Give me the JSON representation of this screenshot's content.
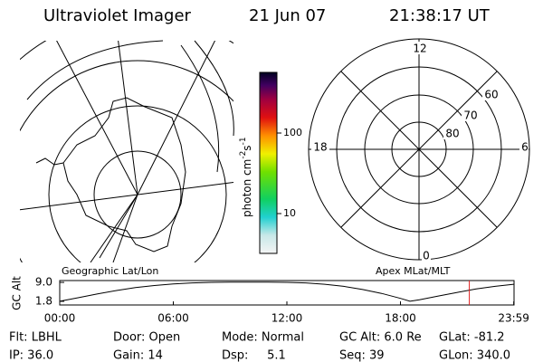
{
  "header": {
    "instrument": "Ultraviolet Imager",
    "date": "21 Jun 07",
    "time": "21:38:17 UT"
  },
  "colorbar": {
    "label": "photon cm",
    "exp1": "-2",
    "unit2": "s",
    "exp2": "-1",
    "ticks": [
      "100",
      "10"
    ]
  },
  "polar": {
    "mlt_labels": [
      "12",
      "18",
      "6",
      "0"
    ],
    "mlat_labels": [
      "60",
      "70",
      "80"
    ]
  },
  "map_label": "Geographic Lat/Lon",
  "polar_label": "Apex MLat/MLT",
  "altitude": {
    "ylabel": "GC Alt",
    "yticks": [
      {
        "value": 9,
        "label": "9.0"
      },
      {
        "value": 1.8,
        "label": "1.8"
      }
    ],
    "ylim": [
      0.4,
      9.7
    ],
    "xlim": [
      0,
      24
    ],
    "xticks": [
      {
        "value": 0,
        "label": "00:00"
      },
      {
        "value": 6,
        "label": "06:00"
      },
      {
        "value": 12,
        "label": "12:00"
      },
      {
        "value": 18,
        "label": "18:00"
      },
      {
        "value": 23.983,
        "label": "23:59"
      }
    ],
    "x": [
      0,
      1,
      2,
      3,
      4,
      5,
      6,
      7,
      8,
      9,
      10,
      11,
      12,
      13,
      14,
      15,
      16,
      17,
      18,
      18.5,
      19,
      20,
      21,
      22,
      23,
      23.983
    ],
    "values": [
      1.8,
      3.2,
      4.6,
      5.9,
      7.0,
      7.8,
      8.4,
      8.8,
      9.0,
      9.1,
      9.1,
      9.1,
      9.0,
      8.8,
      8.3,
      7.5,
      6.3,
      4.8,
      2.9,
      1.8,
      2.4,
      3.8,
      5.2,
      6.5,
      7.5,
      8.3
    ],
    "marker": 21.638
  },
  "footer": {
    "rows": [
      [
        "Flt: LBHL",
        "Door: Open",
        "Mode: Normal",
        "GC Alt: 6.0 Re",
        "GLat: -81.2"
      ],
      [
        "IP: 36.0",
        "Gain: 14",
        "Dsp:     5.1",
        "Seq: 39",
        "GLon: 340.0"
      ]
    ]
  }
}
